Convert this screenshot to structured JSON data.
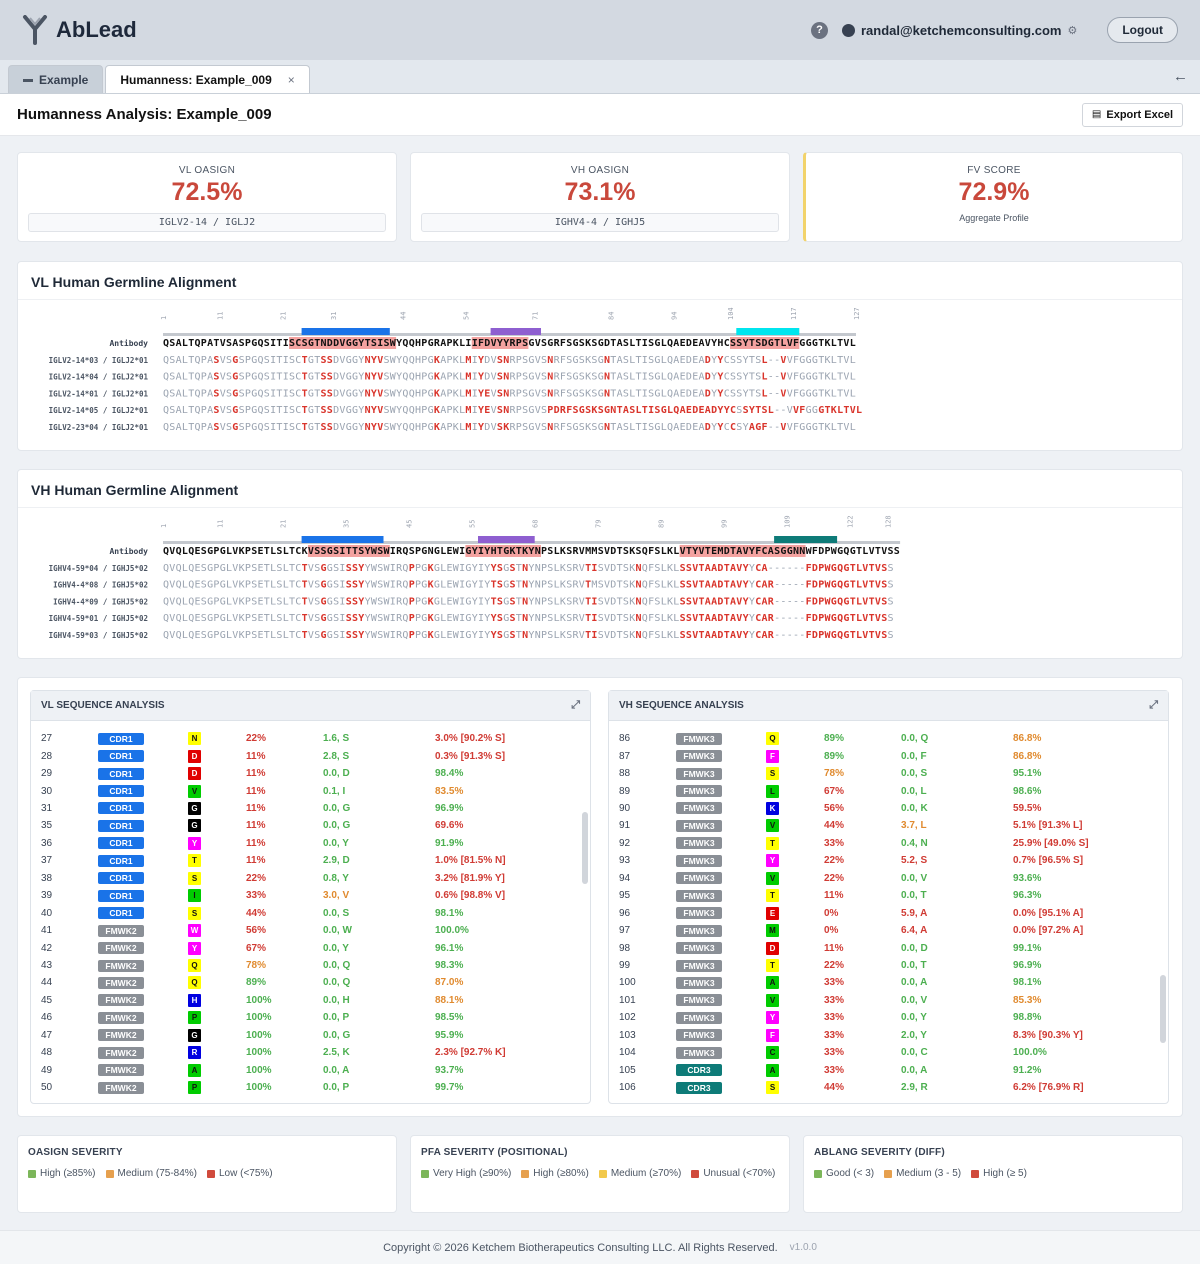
{
  "app": {
    "name": "AbLead",
    "user": "randal@ketchemconsulting.com",
    "logout": "Logout",
    "help": "?"
  },
  "tabs": [
    {
      "label": "Example"
    },
    {
      "label": "Humanness: Example_009",
      "close": "×"
    }
  ],
  "page": {
    "title": "Humanness Analysis: Example_009",
    "export": "Export Excel"
  },
  "scores": {
    "vl": {
      "label": "VL OASIGN",
      "value": "72.5%",
      "germline": "IGLV2-14 / IGLJ2"
    },
    "vh": {
      "label": "VH OASIGN",
      "value": "73.1%",
      "germline": "IGHV4-4 / IGHJ5"
    },
    "fv": {
      "label": "FV SCORE",
      "value": "72.9%",
      "sub": "Aggregate Profile"
    }
  },
  "colors": {
    "cdr1": "#1a73e8",
    "cdr2": "#8e5fd0",
    "cdr3_vl": "#00e5ee",
    "cdr3_vh": "#0e7b78",
    "mismatch": "#d9342b",
    "highlight": "#f4a2a0",
    "green": "#4caf50",
    "orange": "#e6882e",
    "red": "#d03b34",
    "yellow": "#f5c518"
  },
  "vl_alignment": {
    "title": "VL Human Germline Alignment",
    "ticks": [
      "1",
      "11",
      "21",
      "31",
      "44",
      "54",
      "71",
      "84",
      "94",
      "104",
      "117",
      "127"
    ],
    "antibody_label": "Antibody",
    "antibody": "QSALTQPATVSASPGQSITISCSGTNDDVGGYTSISWYQQHPGRAPKLIIFDVYYRPSGVSGRFSGSKSGDTASLTISGLQAEDEAVYHCSSYTSDGTLVFGGGTKLTVL",
    "germlines": [
      {
        "label": "IGLV2-14*03 / IGLJ2*01",
        "seq": "QSALTQPASVSGSPGQSITISCTGTSSDVGGYNYVSWYQQHPGKAPKLMIYDVSNRPSGVSNRFSGSKSGNTASLTISGLQAEDEADYYCSSYTSL--VVFGGGTKLTVL"
      },
      {
        "label": "IGLV2-14*04 / IGLJ2*01",
        "seq": "QSALTQPASVSGSPGQSITISCTGTSSDVGGYNYVSWYQQHPGKAPKLMIYDVSNRPSGVSNRFSGSKSGNTASLTISGLQAEDEADYYCSSYTSL--VVFGGGTKLTVL"
      },
      {
        "label": "IGLV2-14*01 / IGLJ2*01",
        "seq": "QSALTQPASVSGSPGQSITISCTGTSSDVGGYNYVSWYQQHPGKAPKLMIYEVSNRPSGVSNRFSGSKSGNTASLTISGLQAEDEADYYCSSYTSL--VVFGGGTKLTVL"
      },
      {
        "label": "IGLV2-14*05 / IGLJ2*01",
        "seq": "QSALTQPASVSGSPGQSITISCTGTSSDVGGYNYVSWYQQHPGKAPKLMIYEVSNRPSGVSPDRFSGSKSGNTASLTISGLQAEDEADYYCSSYTSL--VVFGGGTKLTVL"
      },
      {
        "label": "IGLV2-23*04 / IGLJ2*01",
        "seq": "QSALTQPASVSGSPGQSITISCTGTSSDVGGYNYVSWYQQHPGKAPKLMIYDVSKRPSGVSNRFSGSKSGNTASLTISGLQAEDEADYYCCSYAGF--VVFGGGTKLTVL"
      }
    ]
  },
  "vh_alignment": {
    "title": "VH Human Germline Alignment",
    "ticks": [
      "1",
      "11",
      "21",
      "35",
      "45",
      "55",
      "68",
      "79",
      "89",
      "99",
      "109",
      "122",
      "128"
    ],
    "antibody_label": "Antibody",
    "antibody": "QVQLQESGPGLVKPSETLSLTCKVSSGSITTSYWSWIRQSPGNGLEWIGYIYHTGKTKYNPSLKSRVMMSVDTSKSQFSLKLVTYVTEMDTAVYFCASGGNNWFDPWGQGTLVTVSS",
    "germlines": [
      {
        "label": "IGHV4-59*04 / IGHJ5*02",
        "seq": "QVQLQESGPGLVKPSETLSLTCTVSGGSISSYYWSWIRQPPGKGLEWIGYIYYSGSTNYNPSLKSRVTISVDTSKNQFSLKLSSVTAADTAVYYCA------FDPWGQGTLVTVSS"
      },
      {
        "label": "IGHV4-4*08 / IGHJ5*02",
        "seq": "QVQLQESGPGLVKPSETLSLTCTVSGGSISSYYWSWIRQPPGKGLEWIGYIYTSGSTNYNPSLKSRVTMSVDTSKNQFSLKLSSVTAADTAVYYCAR-----FDPWGQGTLVTVSS"
      },
      {
        "label": "IGHV4-4*09 / IGHJ5*02",
        "seq": "QVQLQESGPGLVKPSETLSLTCTVSGGSISSYYWSWIRQPPGKGLEWIGYIYTSGSTNYNPSLKSRVTISVDTSKNQFSLKLSSVTAADTAVYYCAR-----FDPWGQGTLVTVSS"
      },
      {
        "label": "IGHV4-59*01 / IGHJ5*02",
        "seq": "QVQLQESGPGLVKPSETLSLTCTVSGGSISSYYWSWIRQPPGKGLEWIGYIYYSGSTNYNPSLKSRVTISVDTSKNQFSLKLSSVTAADTAVYYCAR-----FDPWGQGTLVTVSS"
      },
      {
        "label": "IGHV4-59*03 / IGHJ5*02",
        "seq": "QVQLQESGPGLVKPSETLSLTCTVSGGSISSYYWSWIRQPPGKGLEWIGYIYYSGSTNYNPSLKSRVTISVDTSKNQFSLKLSSVTAADTAVYYCAR-----FDPWGQGTLVTVSS"
      }
    ]
  },
  "vl_table": {
    "title": "VL SEQUENCE ANALYSIS",
    "rows": [
      [
        "27",
        "CDR1",
        "N",
        "22%",
        "1.6, S",
        "3.0% [90.2% S]"
      ],
      [
        "28",
        "CDR1",
        "D",
        "11%",
        "2.8, S",
        "0.3% [91.3% S]"
      ],
      [
        "29",
        "CDR1",
        "D",
        "11%",
        "0.0, D",
        "98.4%"
      ],
      [
        "30",
        "CDR1",
        "V",
        "11%",
        "0.1, I",
        "83.5%"
      ],
      [
        "31",
        "CDR1",
        "G",
        "11%",
        "0.0, G",
        "96.9%"
      ],
      [
        "35",
        "CDR1",
        "G",
        "11%",
        "0.0, G",
        "69.6%"
      ],
      [
        "36",
        "CDR1",
        "Y",
        "11%",
        "0.0, Y",
        "91.9%"
      ],
      [
        "37",
        "CDR1",
        "T",
        "11%",
        "2.9, D",
        "1.0% [81.5% N]"
      ],
      [
        "38",
        "CDR1",
        "S",
        "22%",
        "0.8, Y",
        "3.2% [81.9% Y]"
      ],
      [
        "39",
        "CDR1",
        "I",
        "33%",
        "3.0, V",
        "0.6% [98.8% V]"
      ],
      [
        "40",
        "CDR1",
        "S",
        "44%",
        "0.0, S",
        "98.1%"
      ],
      [
        "41",
        "FMWK2",
        "W",
        "56%",
        "0.0, W",
        "100.0%"
      ],
      [
        "42",
        "FMWK2",
        "Y",
        "67%",
        "0.0, Y",
        "96.1%"
      ],
      [
        "43",
        "FMWK2",
        "Q",
        "78%",
        "0.0, Q",
        "98.3%"
      ],
      [
        "44",
        "FMWK2",
        "Q",
        "89%",
        "0.0, Q",
        "87.0%"
      ],
      [
        "45",
        "FMWK2",
        "H",
        "100%",
        "0.0, H",
        "88.1%"
      ],
      [
        "46",
        "FMWK2",
        "P",
        "100%",
        "0.0, P",
        "98.5%"
      ],
      [
        "47",
        "FMWK2",
        "G",
        "100%",
        "0.0, G",
        "95.9%"
      ],
      [
        "48",
        "FMWK2",
        "R",
        "100%",
        "2.5, K",
        "2.3% [92.7% K]"
      ],
      [
        "49",
        "FMWK2",
        "A",
        "100%",
        "0.0, A",
        "93.7%"
      ],
      [
        "50",
        "FMWK2",
        "P",
        "100%",
        "0.0, P",
        "99.7%"
      ]
    ]
  },
  "vh_table": {
    "title": "VH SEQUENCE ANALYSIS",
    "rows": [
      [
        "86",
        "FMWK3",
        "Q",
        "89%",
        "0.0, Q",
        "86.8%"
      ],
      [
        "87",
        "FMWK3",
        "F",
        "89%",
        "0.0, F",
        "86.8%"
      ],
      [
        "88",
        "FMWK3",
        "S",
        "78%",
        "0.0, S",
        "95.1%"
      ],
      [
        "89",
        "FMWK3",
        "L",
        "67%",
        "0.0, L",
        "98.6%"
      ],
      [
        "90",
        "FMWK3",
        "K",
        "56%",
        "0.0, K",
        "59.5%"
      ],
      [
        "91",
        "FMWK3",
        "V",
        "44%",
        "3.7, L",
        "5.1% [91.3% L]"
      ],
      [
        "92",
        "FMWK3",
        "T",
        "33%",
        "0.4, N",
        "25.9% [49.0% S]"
      ],
      [
        "93",
        "FMWK3",
        "Y",
        "22%",
        "5.2, S",
        "0.7% [96.5% S]"
      ],
      [
        "94",
        "FMWK3",
        "V",
        "22%",
        "0.0, V",
        "93.6%"
      ],
      [
        "95",
        "FMWK3",
        "T",
        "11%",
        "0.0, T",
        "96.3%"
      ],
      [
        "96",
        "FMWK3",
        "E",
        "0%",
        "5.9, A",
        "0.0% [95.1% A]"
      ],
      [
        "97",
        "FMWK3",
        "M",
        "0%",
        "6.4, A",
        "0.0% [97.2% A]"
      ],
      [
        "98",
        "FMWK3",
        "D",
        "11%",
        "0.0, D",
        "99.1%"
      ],
      [
        "99",
        "FMWK3",
        "T",
        "22%",
        "0.0, T",
        "96.9%"
      ],
      [
        "100",
        "FMWK3",
        "A",
        "33%",
        "0.0, A",
        "98.1%"
      ],
      [
        "101",
        "FMWK3",
        "V",
        "33%",
        "0.0, V",
        "85.3%"
      ],
      [
        "102",
        "FMWK3",
        "Y",
        "33%",
        "0.0, Y",
        "98.8%"
      ],
      [
        "103",
        "FMWK3",
        "F",
        "33%",
        "2.0, Y",
        "8.3% [90.3% Y]"
      ],
      [
        "104",
        "FMWK3",
        "C",
        "33%",
        "0.0, C",
        "100.0%"
      ],
      [
        "105",
        "CDR3",
        "A",
        "33%",
        "0.0, A",
        "91.2%"
      ],
      [
        "106",
        "CDR3",
        "S",
        "44%",
        "2.9, R",
        "6.2% [76.9% R]"
      ]
    ]
  },
  "legends": {
    "oasign": {
      "title": "OASIGN SEVERITY",
      "items": [
        {
          "label": "High (≥85%)",
          "color": "#7cb65a"
        },
        {
          "label": "Medium (75-84%)",
          "color": "#e6a04e"
        },
        {
          "label": "Low (<75%)",
          "color": "#d04a3c"
        }
      ]
    },
    "pfa": {
      "title": "PFA SEVERITY (POSITIONAL)",
      "items": [
        {
          "label": "Very High (≥90%)",
          "color": "#7cb65a"
        },
        {
          "label": "High (≥80%)",
          "color": "#e6a04e"
        },
        {
          "label": "Medium (≥70%)",
          "color": "#f2c94c"
        },
        {
          "label": "Unusual (<70%)",
          "color": "#d04a3c"
        }
      ]
    },
    "ablang": {
      "title": "ABLANG SEVERITY (DIFF)",
      "items": [
        {
          "label": "Good (< 3)",
          "color": "#7cb65a"
        },
        {
          "label": "Medium (3 - 5)",
          "color": "#e6a04e"
        },
        {
          "label": "High (≥ 5)",
          "color": "#d04a3c"
        }
      ]
    }
  },
  "footer": {
    "copyright": "Copyright © 2026 Ketchem Biotherapeutics Consulting LLC. All Rights Reserved.",
    "version": "v1.0.0"
  }
}
